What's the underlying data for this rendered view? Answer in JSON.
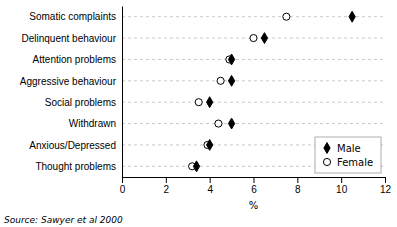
{
  "chart_data": {
    "type": "dot",
    "orientation": "horizontal",
    "categories": [
      "Somatic complaints",
      "Delinquent behaviour",
      "Attention problems",
      "Aggressive behaviour",
      "Social problems",
      "Withdrawn",
      "Anxious/Depressed",
      "Thought problems"
    ],
    "series": [
      {
        "name": "Male",
        "color": "#000000",
        "marker": "diamond",
        "values": [
          10.5,
          6.5,
          5.0,
          5.0,
          4.0,
          5.0,
          4.0,
          3.4
        ]
      },
      {
        "name": "Female",
        "color": "#000000",
        "marker": "circle",
        "values": [
          7.5,
          6.0,
          4.9,
          4.5,
          3.5,
          4.4,
          3.9,
          3.2
        ]
      }
    ],
    "x_label": "%",
    "xlim": [
      0,
      12
    ],
    "xticks": [
      0,
      2,
      4,
      6,
      8,
      10,
      12
    ],
    "grid": true,
    "legend": "lower right",
    "annotations": [
      "Source: Sawyer et al 2000"
    ]
  }
}
